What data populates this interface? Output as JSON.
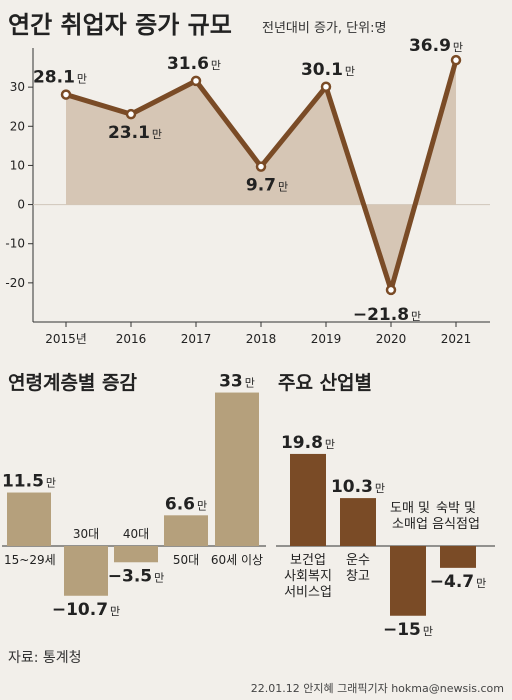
{
  "colors": {
    "background": "#f2efea",
    "line": "#7a4b26",
    "area_fill": "#d6c6b5",
    "age_bar": "#b5a07c",
    "industry_bar": "#7a4b26",
    "text": "#222222",
    "axis": "#333333",
    "grid": "#cfc6ba"
  },
  "header": {
    "title": "연간 취업자 증가 규모",
    "subtitle": "전년대비 증가, 단위:명"
  },
  "footer": {
    "source": "자료: 통계청",
    "credit": "22.01.12 안지혜 그래픽기자 hokma@newsis.com"
  },
  "unit_suffix": "만",
  "chart_data": [
    {
      "type": "area",
      "title": "연간 취업자 증가 규모",
      "subtitle": "전년대비 증가, 단위:명",
      "categories": [
        "2015년",
        "2016",
        "2017",
        "2018",
        "2019",
        "2020",
        "2021"
      ],
      "values": [
        28.1,
        23.1,
        31.6,
        9.7,
        30.1,
        -21.8,
        36.9
      ],
      "value_labels": [
        "28.1",
        "23.1",
        "31.6",
        "9.7",
        "30.1",
        "−21.8",
        "36.9"
      ],
      "yticks": [
        "30",
        "20",
        "10",
        "0",
        "-10",
        "-20"
      ],
      "ytick_values": [
        30,
        20,
        10,
        0,
        -10,
        -20
      ],
      "ylim": [
        -30,
        40
      ],
      "grid": false
    },
    {
      "type": "bar",
      "title": "연령계층별 증감",
      "categories": [
        "15~29세",
        "30대",
        "40대",
        "50대",
        "60세 이상"
      ],
      "values": [
        11.5,
        -10.7,
        -3.5,
        6.6,
        33
      ],
      "value_labels": [
        "11.5",
        "−10.7",
        "−3.5",
        "6.6",
        "33"
      ]
    },
    {
      "type": "bar",
      "title": "주요 산업별",
      "categories": [
        "보건업 사회복지 서비스업",
        "운수 창고",
        "도매 및 소매업",
        "숙박 및 음식점업"
      ],
      "category_lines": [
        [
          "보건업",
          "사회복지",
          "서비스업"
        ],
        [
          "운수",
          "창고"
        ],
        [
          "도매 및",
          "소매업"
        ],
        [
          "숙박 및",
          "음식점업"
        ]
      ],
      "values": [
        19.8,
        10.3,
        -15,
        -4.7
      ],
      "value_labels": [
        "19.8",
        "10.3",
        "−15",
        "−4.7"
      ]
    }
  ]
}
